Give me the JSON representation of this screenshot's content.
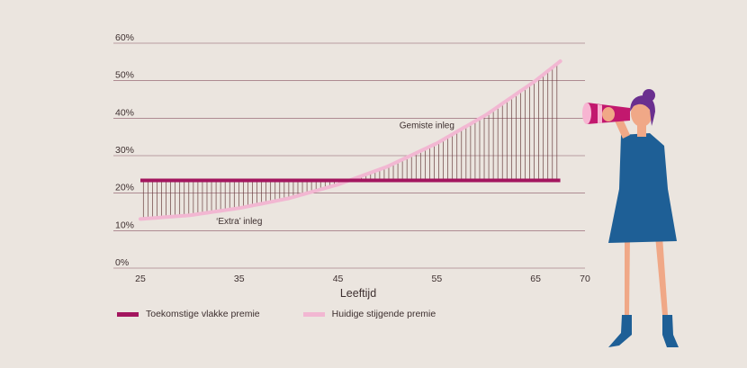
{
  "chart_data": {
    "type": "line",
    "xlabel": "Leeftijd",
    "ylabel": "",
    "xlim": [
      25,
      70
    ],
    "ylim": [
      0,
      60
    ],
    "x_ticks": [
      25,
      35,
      45,
      55,
      65,
      70
    ],
    "y_ticks": [
      "0%",
      "10%",
      "20%",
      "30%",
      "40%",
      "50%",
      "60%"
    ],
    "y_tick_values": [
      0,
      10,
      20,
      30,
      40,
      50,
      60
    ],
    "grid": "horizontal",
    "legend_position": "bottom-left",
    "series": [
      {
        "name": "Toekomstige vlakke premie",
        "color": "#a3155e",
        "x": [
          25,
          67.5
        ],
        "y": [
          23.4,
          23.4
        ]
      },
      {
        "name": "Huidige stijgende premie",
        "color": "#f2b7d2",
        "x": [
          25,
          30,
          35,
          40,
          45,
          50,
          55,
          60,
          65,
          67.5
        ],
        "y": [
          13.1,
          14.1,
          16.0,
          18.6,
          22.3,
          27.1,
          33.3,
          40.9,
          50.0,
          55.2
        ]
      }
    ],
    "annotations": [
      {
        "text": "Gemiste inleg",
        "x": 54,
        "y": 37.3
      },
      {
        "text": "‘Extra’ inleg",
        "x": 35,
        "y": 11.8
      }
    ]
  },
  "legend": {
    "items": [
      {
        "label": "Toekomstige vlakke premie",
        "color": "#a3155e"
      },
      {
        "label": "Huidige stijgende premie",
        "color": "#f2b7d2"
      }
    ]
  },
  "colors": {
    "background": "#ebe5df",
    "grid": "#7a3c4e",
    "hatch": "#6b4141",
    "figure_dress": "#1e5f96",
    "figure_skin": "#f0a887",
    "figure_hair": "#6a2f8f",
    "telescope": "#c2186e",
    "telescope_light": "#f7b5d2"
  }
}
